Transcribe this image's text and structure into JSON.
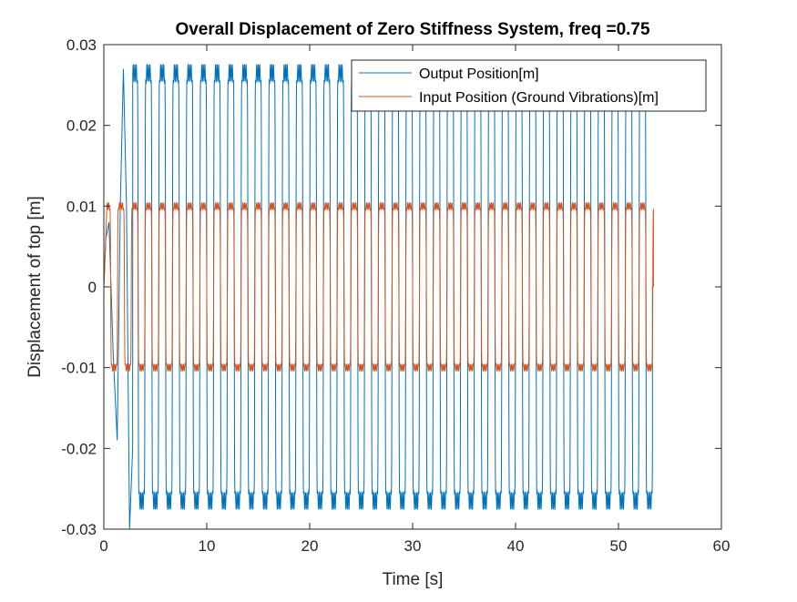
{
  "chart_data": {
    "type": "line",
    "title": "Overall Displacement of Zero Stiffness System, freq =0.75",
    "xlabel": "Time [s]",
    "ylabel": "Displacement of top [m]",
    "xlim": [
      0,
      60
    ],
    "ylim": [
      -0.03,
      0.03
    ],
    "xticks": [
      0,
      10,
      20,
      30,
      40,
      50,
      60
    ],
    "yticks": [
      -0.03,
      -0.02,
      -0.01,
      0,
      0.01,
      0.02,
      0.03
    ],
    "xtick_labels": [
      "0",
      "10",
      "20",
      "30",
      "40",
      "50",
      "60"
    ],
    "ytick_labels": [
      "-0.03",
      "-0.02",
      "-0.01",
      "0",
      "0.01",
      "0.02",
      "0.03"
    ],
    "grid": false,
    "legend_position": "top-right",
    "series": [
      {
        "name": "Output Position[m]",
        "color": "#0072BD",
        "waveform": "square-like",
        "frequency_hz": 0.75,
        "steady_amplitude": 0.0265,
        "x_start": 0,
        "x_end": 53.3,
        "transient": [
          {
            "x": 0.0,
            "y": 0.0
          },
          {
            "x": 0.2,
            "y": 0.006
          },
          {
            "x": 0.5,
            "y": 0.008
          },
          {
            "x": 0.9,
            "y": -0.008
          },
          {
            "x": 1.3,
            "y": -0.019
          },
          {
            "x": 1.6,
            "y": 0.01
          },
          {
            "x": 1.9,
            "y": 0.027
          },
          {
            "x": 2.2,
            "y": 0.01
          },
          {
            "x": 2.5,
            "y": -0.03
          },
          {
            "x": 2.8,
            "y": -0.02
          }
        ]
      },
      {
        "name": "Input Position (Ground Vibrations)[m]",
        "color": "#D95319",
        "waveform": "square-like",
        "frequency_hz": 0.75,
        "steady_amplitude": 0.01,
        "x_start": 0,
        "x_end": 53.4,
        "transient": [
          {
            "x": 0.0,
            "y": 0.0
          },
          {
            "x": 0.3,
            "y": 0.01
          }
        ]
      }
    ]
  }
}
